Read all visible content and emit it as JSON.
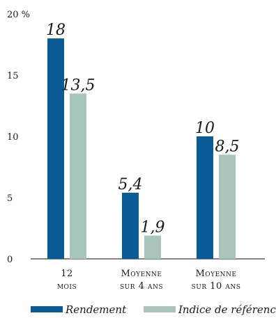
{
  "chart_data": {
    "type": "bar",
    "categories": [
      [
        "12",
        "mois"
      ],
      [
        "Moyenne",
        "sur 4 ans"
      ],
      [
        "Moyenne",
        "sur 10 ans"
      ]
    ],
    "series": [
      {
        "name": "Rendement",
        "color": "#0a5a96",
        "values": [
          18,
          5.4,
          10
        ],
        "labels": [
          "18",
          "5,4",
          "10"
        ]
      },
      {
        "name": "Indice de référence",
        "color": "#a9c4bb",
        "values": [
          13.5,
          1.9,
          8.5
        ],
        "labels": [
          "13,5",
          "1,9",
          "8,5"
        ]
      }
    ],
    "y_ticks": [
      {
        "value": 0,
        "label": "0"
      },
      {
        "value": 5,
        "label": "5"
      },
      {
        "value": 10,
        "label": "10"
      },
      {
        "value": 15,
        "label": "15"
      },
      {
        "value": 20,
        "label": "20 %"
      }
    ],
    "ylim": [
      0,
      20
    ],
    "grid": false,
    "legend_position": "bottom"
  }
}
